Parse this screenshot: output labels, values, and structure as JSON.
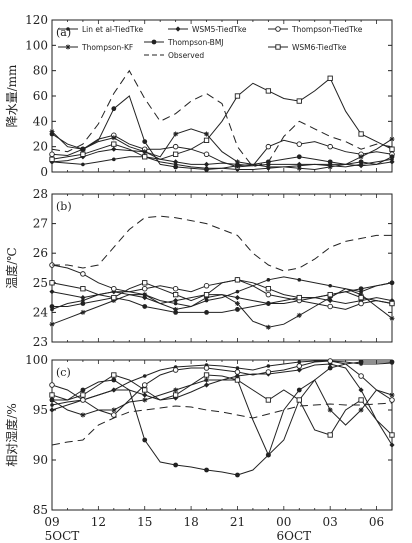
{
  "chart_data": [
    {
      "panel_label": "(a)",
      "type": "line",
      "ylabel": "降水量/mm",
      "ylim": [
        0,
        120
      ],
      "yticks": [
        0,
        20,
        40,
        60,
        80,
        100,
        120
      ],
      "x": [
        "09",
        "10",
        "11",
        "12",
        "13",
        "14",
        "15",
        "16",
        "17",
        "18",
        "19",
        "20",
        "21",
        "22",
        "23",
        "00",
        "01",
        "02",
        "03",
        "04",
        "05",
        "06",
        "07"
      ],
      "legend": [
        "Lin et al-TiedTke",
        "WSM5-TiedTke",
        "Thompson-TiedTke",
        "Thompson-KF",
        "Thompson-BMJ",
        "WSM6-TiedTke",
        "Observed"
      ],
      "series": [
        {
          "name": "Lin et al-TiedTke",
          "values": [
            8,
            7,
            6,
            8,
            10,
            12,
            12,
            8,
            6,
            4,
            3,
            3,
            2,
            2,
            3,
            4,
            5,
            6,
            5,
            4,
            6,
            8,
            10
          ]
        },
        {
          "name": "WSM5-TiedTke",
          "values": [
            8,
            9,
            12,
            16,
            18,
            17,
            16,
            10,
            8,
            6,
            6,
            7,
            6,
            5,
            6,
            6,
            6,
            6,
            6,
            6,
            5,
            6,
            8
          ]
        },
        {
          "name": "Thompson-TiedTke",
          "values": [
            14,
            13,
            18,
            26,
            29,
            22,
            18,
            18,
            20,
            18,
            14,
            8,
            4,
            5,
            20,
            25,
            22,
            24,
            20,
            16,
            14,
            16,
            14
          ]
        },
        {
          "name": "Thompson-KF",
          "values": [
            32,
            20,
            18,
            24,
            27,
            20,
            16,
            12,
            30,
            34,
            30,
            16,
            8,
            6,
            4,
            4,
            3,
            2,
            4,
            6,
            12,
            18,
            26
          ]
        },
        {
          "name": "Thompson-BMJ",
          "values": [
            30,
            22,
            18,
            25,
            50,
            60,
            24,
            6,
            4,
            3,
            2,
            3,
            5,
            6,
            8,
            10,
            12,
            10,
            8,
            6,
            8,
            6,
            12
          ]
        },
        {
          "name": "WSM6-TiedTke",
          "values": [
            10,
            12,
            14,
            18,
            22,
            18,
            12,
            10,
            14,
            18,
            25,
            40,
            60,
            70,
            64,
            58,
            56,
            64,
            74,
            48,
            30,
            24,
            18
          ]
        },
        {
          "name": "Observed",
          "values": [
            18,
            16,
            22,
            38,
            62,
            80,
            58,
            40,
            46,
            56,
            62,
            54,
            20,
            4,
            8,
            28,
            40,
            34,
            28,
            24,
            18,
            22,
            20
          ]
        }
      ]
    },
    {
      "panel_label": "(b)",
      "type": "line",
      "ylabel": "温度/℃",
      "ylim": [
        23,
        28
      ],
      "yticks": [
        23,
        24,
        25,
        26,
        27,
        28
      ],
      "x": [
        "09",
        "10",
        "11",
        "12",
        "13",
        "14",
        "15",
        "16",
        "17",
        "18",
        "19",
        "20",
        "21",
        "22",
        "23",
        "00",
        "01",
        "02",
        "03",
        "04",
        "05",
        "06",
        "07"
      ],
      "series": [
        {
          "name": "Lin et al-TiedTke",
          "values": [
            24.1,
            24.3,
            24.4,
            24.6,
            24.7,
            24.7,
            24.6,
            24.4,
            24.3,
            24.2,
            24.4,
            24.5,
            24.7,
            24.9,
            25.1,
            25.2,
            25.1,
            25.0,
            24.9,
            24.8,
            24.7,
            24.9,
            25.0
          ]
        },
        {
          "name": "WSM5-TiedTke",
          "values": [
            24.7,
            24.6,
            24.5,
            24.6,
            24.7,
            24.6,
            24.5,
            24.3,
            24.4,
            24.5,
            24.6,
            24.6,
            24.5,
            24.4,
            24.3,
            24.3,
            24.4,
            24.5,
            24.4,
            24.3,
            24.4,
            24.5,
            24.4
          ]
        },
        {
          "name": "Thompson-TiedTke",
          "values": [
            25.6,
            25.5,
            25.3,
            25.0,
            24.8,
            24.7,
            24.8,
            24.9,
            24.8,
            24.7,
            24.9,
            25.0,
            25.1,
            24.9,
            24.6,
            24.5,
            24.4,
            24.3,
            24.2,
            24.1,
            24.3,
            24.4,
            24.3
          ]
        },
        {
          "name": "Thompson-KF",
          "values": [
            23.6,
            23.8,
            24.0,
            24.2,
            24.4,
            24.6,
            24.6,
            24.3,
            24.1,
            24.2,
            24.5,
            24.6,
            24.3,
            23.7,
            23.5,
            23.6,
            23.9,
            24.2,
            24.5,
            24.8,
            24.6,
            24.2,
            23.8
          ]
        },
        {
          "name": "Thompson-BMJ",
          "values": [
            24.2,
            24.2,
            24.3,
            24.4,
            24.5,
            24.4,
            24.2,
            24.1,
            24.0,
            24.0,
            24.0,
            24.0,
            24.1,
            24.2,
            24.3,
            24.4,
            24.5,
            24.5,
            24.6,
            24.7,
            24.8,
            24.9,
            25.0
          ]
        },
        {
          "name": "WSM6-TiedTke",
          "values": [
            25.0,
            24.9,
            24.8,
            24.6,
            24.5,
            24.8,
            25.0,
            24.8,
            24.6,
            24.4,
            24.6,
            25.0,
            25.1,
            25.0,
            24.8,
            24.6,
            24.5,
            24.5,
            24.6,
            24.7,
            24.5,
            24.4,
            24.3
          ]
        },
        {
          "name": "Observed",
          "values": [
            25.6,
            25.6,
            25.5,
            25.6,
            26.2,
            26.8,
            27.2,
            27.25,
            27.2,
            27.1,
            27.0,
            26.8,
            26.6,
            26.0,
            25.6,
            25.4,
            25.5,
            25.8,
            26.2,
            26.4,
            26.5,
            26.6,
            26.6
          ]
        }
      ]
    },
    {
      "panel_label": "(c)",
      "type": "line",
      "ylabel": "相对湿度/%",
      "ylim": [
        85,
        100
      ],
      "yticks": [
        85,
        90,
        95,
        100
      ],
      "x": [
        "09",
        "10",
        "11",
        "12",
        "13",
        "14",
        "15",
        "16",
        "17",
        "18",
        "19",
        "20",
        "21",
        "22",
        "23",
        "00",
        "01",
        "02",
        "03",
        "04",
        "05",
        "06",
        "07"
      ],
      "xticks": [
        "09",
        "12",
        "15",
        "18",
        "21",
        "00",
        "03",
        "06"
      ],
      "date_labels": [
        "5OCT",
        "6OCT"
      ],
      "series": [
        {
          "name": "Lin et al-TiedTke",
          "values": [
            95.5,
            95.8,
            96.0,
            96.5,
            97.0,
            97.8,
            98.4,
            99.0,
            99.3,
            99.4,
            99.5,
            99.4,
            99.2,
            99.0,
            99.4,
            99.6,
            99.8,
            99.9,
            99.9,
            99.8,
            99.6,
            99.6,
            99.7
          ]
        },
        {
          "name": "WSM5-TiedTke",
          "values": [
            95.0,
            95.5,
            96.0,
            96.5,
            97.0,
            97.0,
            96.5,
            96.0,
            96.2,
            96.8,
            97.5,
            98.0,
            98.4,
            98.6,
            98.6,
            98.8,
            99.0,
            99.5,
            99.6,
            99.2,
            97.0,
            94.0,
            91.5
          ]
        },
        {
          "name": "Thompson-TiedTke",
          "values": [
            97.5,
            97.0,
            96.0,
            95.0,
            94.5,
            96.0,
            97.5,
            98.5,
            99.0,
            99.2,
            99.2,
            99.0,
            98.8,
            98.5,
            98.8,
            99.0,
            99.4,
            99.8,
            99.9,
            99.6,
            98.4,
            97.0,
            96.0
          ]
        },
        {
          "name": "Thompson-KF",
          "values": [
            96.0,
            95.0,
            94.5,
            95.0,
            95.0,
            95.8,
            96.0,
            96.5,
            97.0,
            97.5,
            98.0,
            98.0,
            98.0,
            94.0,
            90.5,
            92.0,
            96.0,
            98.0,
            95.0,
            93.5,
            95.0,
            97.0,
            96.5
          ]
        },
        {
          "name": "Thompson-BMJ",
          "values": [
            96.0,
            96.0,
            97.0,
            97.8,
            98.0,
            97.0,
            92.0,
            89.8,
            89.5,
            89.3,
            89.0,
            88.8,
            88.5,
            89.0,
            90.5,
            95.0,
            97.0,
            98.0,
            99.2,
            99.6,
            99.8,
            99.8,
            99.8
          ]
        },
        {
          "name": "WSM6-TiedTke",
          "values": [
            96.5,
            96.0,
            96.5,
            97.5,
            98.5,
            98.0,
            97.0,
            96.0,
            96.5,
            97.5,
            98.5,
            98.4,
            98.0,
            97.0,
            96.0,
            97.0,
            96.0,
            93.0,
            92.5,
            95.0,
            96.0,
            94.0,
            92.5
          ]
        },
        {
          "name": "Observed",
          "values": [
            91.5,
            91.8,
            92.0,
            93.5,
            94.2,
            94.8,
            95.0,
            95.2,
            95.4,
            95.3,
            95.0,
            94.8,
            94.5,
            94.2,
            94.6,
            95.0,
            95.4,
            95.5,
            95.6,
            95.5,
            95.5,
            95.6,
            95.7
          ]
        }
      ]
    }
  ]
}
